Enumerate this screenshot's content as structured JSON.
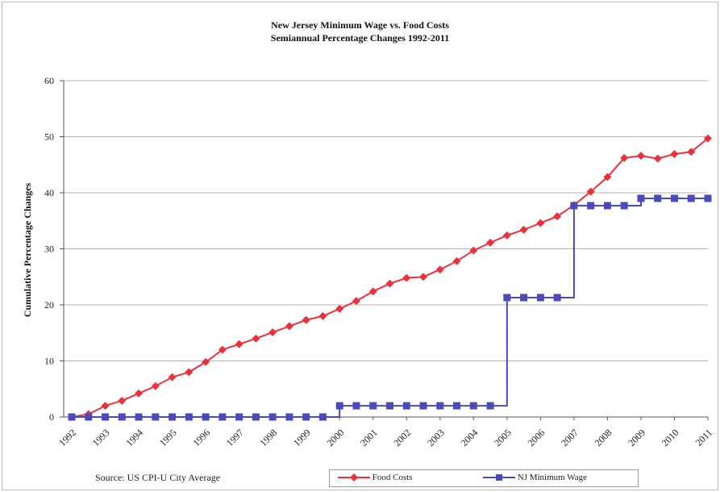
{
  "chart_data": {
    "type": "line",
    "title": "New Jersey Minimum Wage vs. Food Costs",
    "subtitle": "Semiannual Percentage Changes 1992-2011",
    "xlabel": "",
    "ylabel": "Cumulative Percentage Changes",
    "ylim": [
      0,
      60
    ],
    "xlim": [
      1992,
      2011
    ],
    "yticks": [
      0,
      10,
      20,
      30,
      40,
      50,
      60
    ],
    "xticks": [
      "1992",
      "1993",
      "1994",
      "1995",
      "1996",
      "1997",
      "1998",
      "1999",
      "2000",
      "2001",
      "2002",
      "2003",
      "2004",
      "2005",
      "2006",
      "2007",
      "2008",
      "2009",
      "2010",
      "2011"
    ],
    "grid": "horizontal",
    "legend_position": "bottom-right",
    "source": "Source: US CPI-U City Average",
    "series": [
      {
        "name": "Food Costs",
        "color": "#e8323c",
        "marker": "diamond",
        "x": [
          1992,
          1992.5,
          1993,
          1993.5,
          1994,
          1994.5,
          1995,
          1995.5,
          1996,
          1996.5,
          1997,
          1997.5,
          1998,
          1998.5,
          1999,
          1999.5,
          2000,
          2000.5,
          2001,
          2001.5,
          2002,
          2002.5,
          2003,
          2003.5,
          2004,
          2004.5,
          2005,
          2005.5,
          2006,
          2006.5,
          2007,
          2007.5,
          2008,
          2008.5,
          2009,
          2009.5,
          2010,
          2010.5,
          2011
        ],
        "values": [
          0,
          0.5,
          2.0,
          2.9,
          4.2,
          5.5,
          7.1,
          8.0,
          9.8,
          12.0,
          13.0,
          14.0,
          15.1,
          16.2,
          17.3,
          18.0,
          19.3,
          20.7,
          22.4,
          23.8,
          24.8,
          25.0,
          26.3,
          27.8,
          29.7,
          31.1,
          32.4,
          33.4,
          34.6,
          35.8,
          37.8,
          40.2,
          42.8,
          46.2,
          46.6,
          46.1,
          46.9,
          47.3,
          49.7
        ]
      },
      {
        "name": "NJ Minimum Wage",
        "color": "#4a4ab8",
        "marker": "square",
        "x": [
          1992,
          1992.5,
          1993,
          1993.5,
          1994,
          1994.5,
          1995,
          1995.5,
          1996,
          1996.5,
          1997,
          1997.5,
          1998,
          1998.5,
          1999,
          1999.5,
          2000,
          2000.5,
          2001,
          2001.5,
          2002,
          2002.5,
          2003,
          2003.5,
          2004,
          2004.5,
          2005,
          2005.5,
          2006,
          2006.5,
          2007,
          2007.5,
          2008,
          2008.5,
          2009,
          2009.5,
          2010,
          2010.5,
          2011
        ],
        "values": [
          0,
          0,
          0,
          0,
          0,
          0,
          0,
          0,
          0,
          0,
          0,
          0,
          0,
          0,
          0,
          0,
          2.0,
          2.0,
          2.0,
          2.0,
          2.0,
          2.0,
          2.0,
          2.0,
          2.0,
          2.0,
          21.3,
          21.3,
          21.3,
          21.3,
          37.7,
          37.7,
          37.7,
          37.7,
          39.0,
          39.0,
          39.0,
          39.0,
          39.0
        ]
      }
    ]
  }
}
